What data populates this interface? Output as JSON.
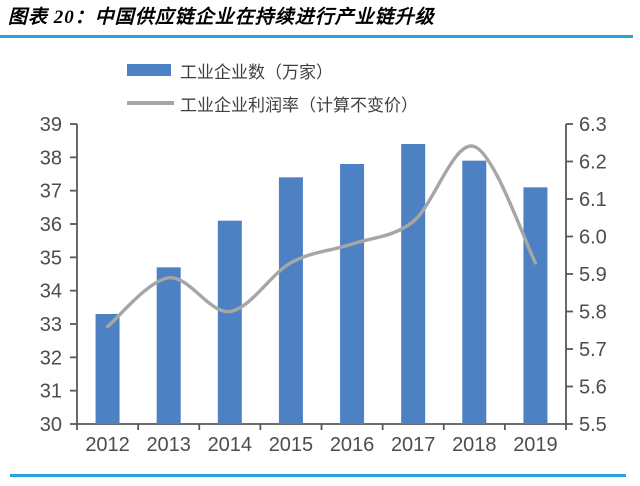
{
  "header": {
    "title": "图表 20：中国供应链企业在持续进行产业链升级"
  },
  "colors": {
    "rule_line": "#29A3DB",
    "bar_fill": "#4D81C3",
    "line_stroke": "#A6A6A6",
    "axis_stroke": "#595959",
    "tick_label": "#4D4D4D"
  },
  "chart_data": {
    "type": "bar",
    "subtype": "combo-bar-line",
    "title": "图表 20：中国供应链企业在持续进行产业链升级",
    "categories": [
      "2012",
      "2013",
      "2014",
      "2015",
      "2016",
      "2017",
      "2018",
      "2019"
    ],
    "series": [
      {
        "name": "工业企业数（万家）",
        "type": "bar",
        "axis": "left",
        "color": "#4D81C3",
        "values": [
          33.3,
          34.7,
          36.1,
          37.4,
          37.8,
          38.4,
          37.9,
          37.1
        ]
      },
      {
        "name": "工业企业利润率（计算不变价）",
        "type": "line",
        "axis": "right",
        "color": "#A6A6A6",
        "values": [
          5.76,
          5.89,
          5.8,
          5.93,
          5.98,
          6.04,
          6.24,
          5.93
        ]
      }
    ],
    "left_axis": {
      "min": 30,
      "max": 39,
      "step": 1,
      "ticks": [
        "30",
        "31",
        "32",
        "33",
        "34",
        "35",
        "36",
        "37",
        "38",
        "39"
      ]
    },
    "right_axis": {
      "min": 5.5,
      "max": 6.3,
      "step": 0.1,
      "ticks": [
        "5.5",
        "5.6",
        "5.7",
        "5.8",
        "5.9",
        "6.0",
        "6.1",
        "6.2",
        "6.3"
      ]
    },
    "xlabel": "",
    "ylabel": "",
    "legend_position": "top-left",
    "grid": false,
    "line_smoothing": true
  }
}
